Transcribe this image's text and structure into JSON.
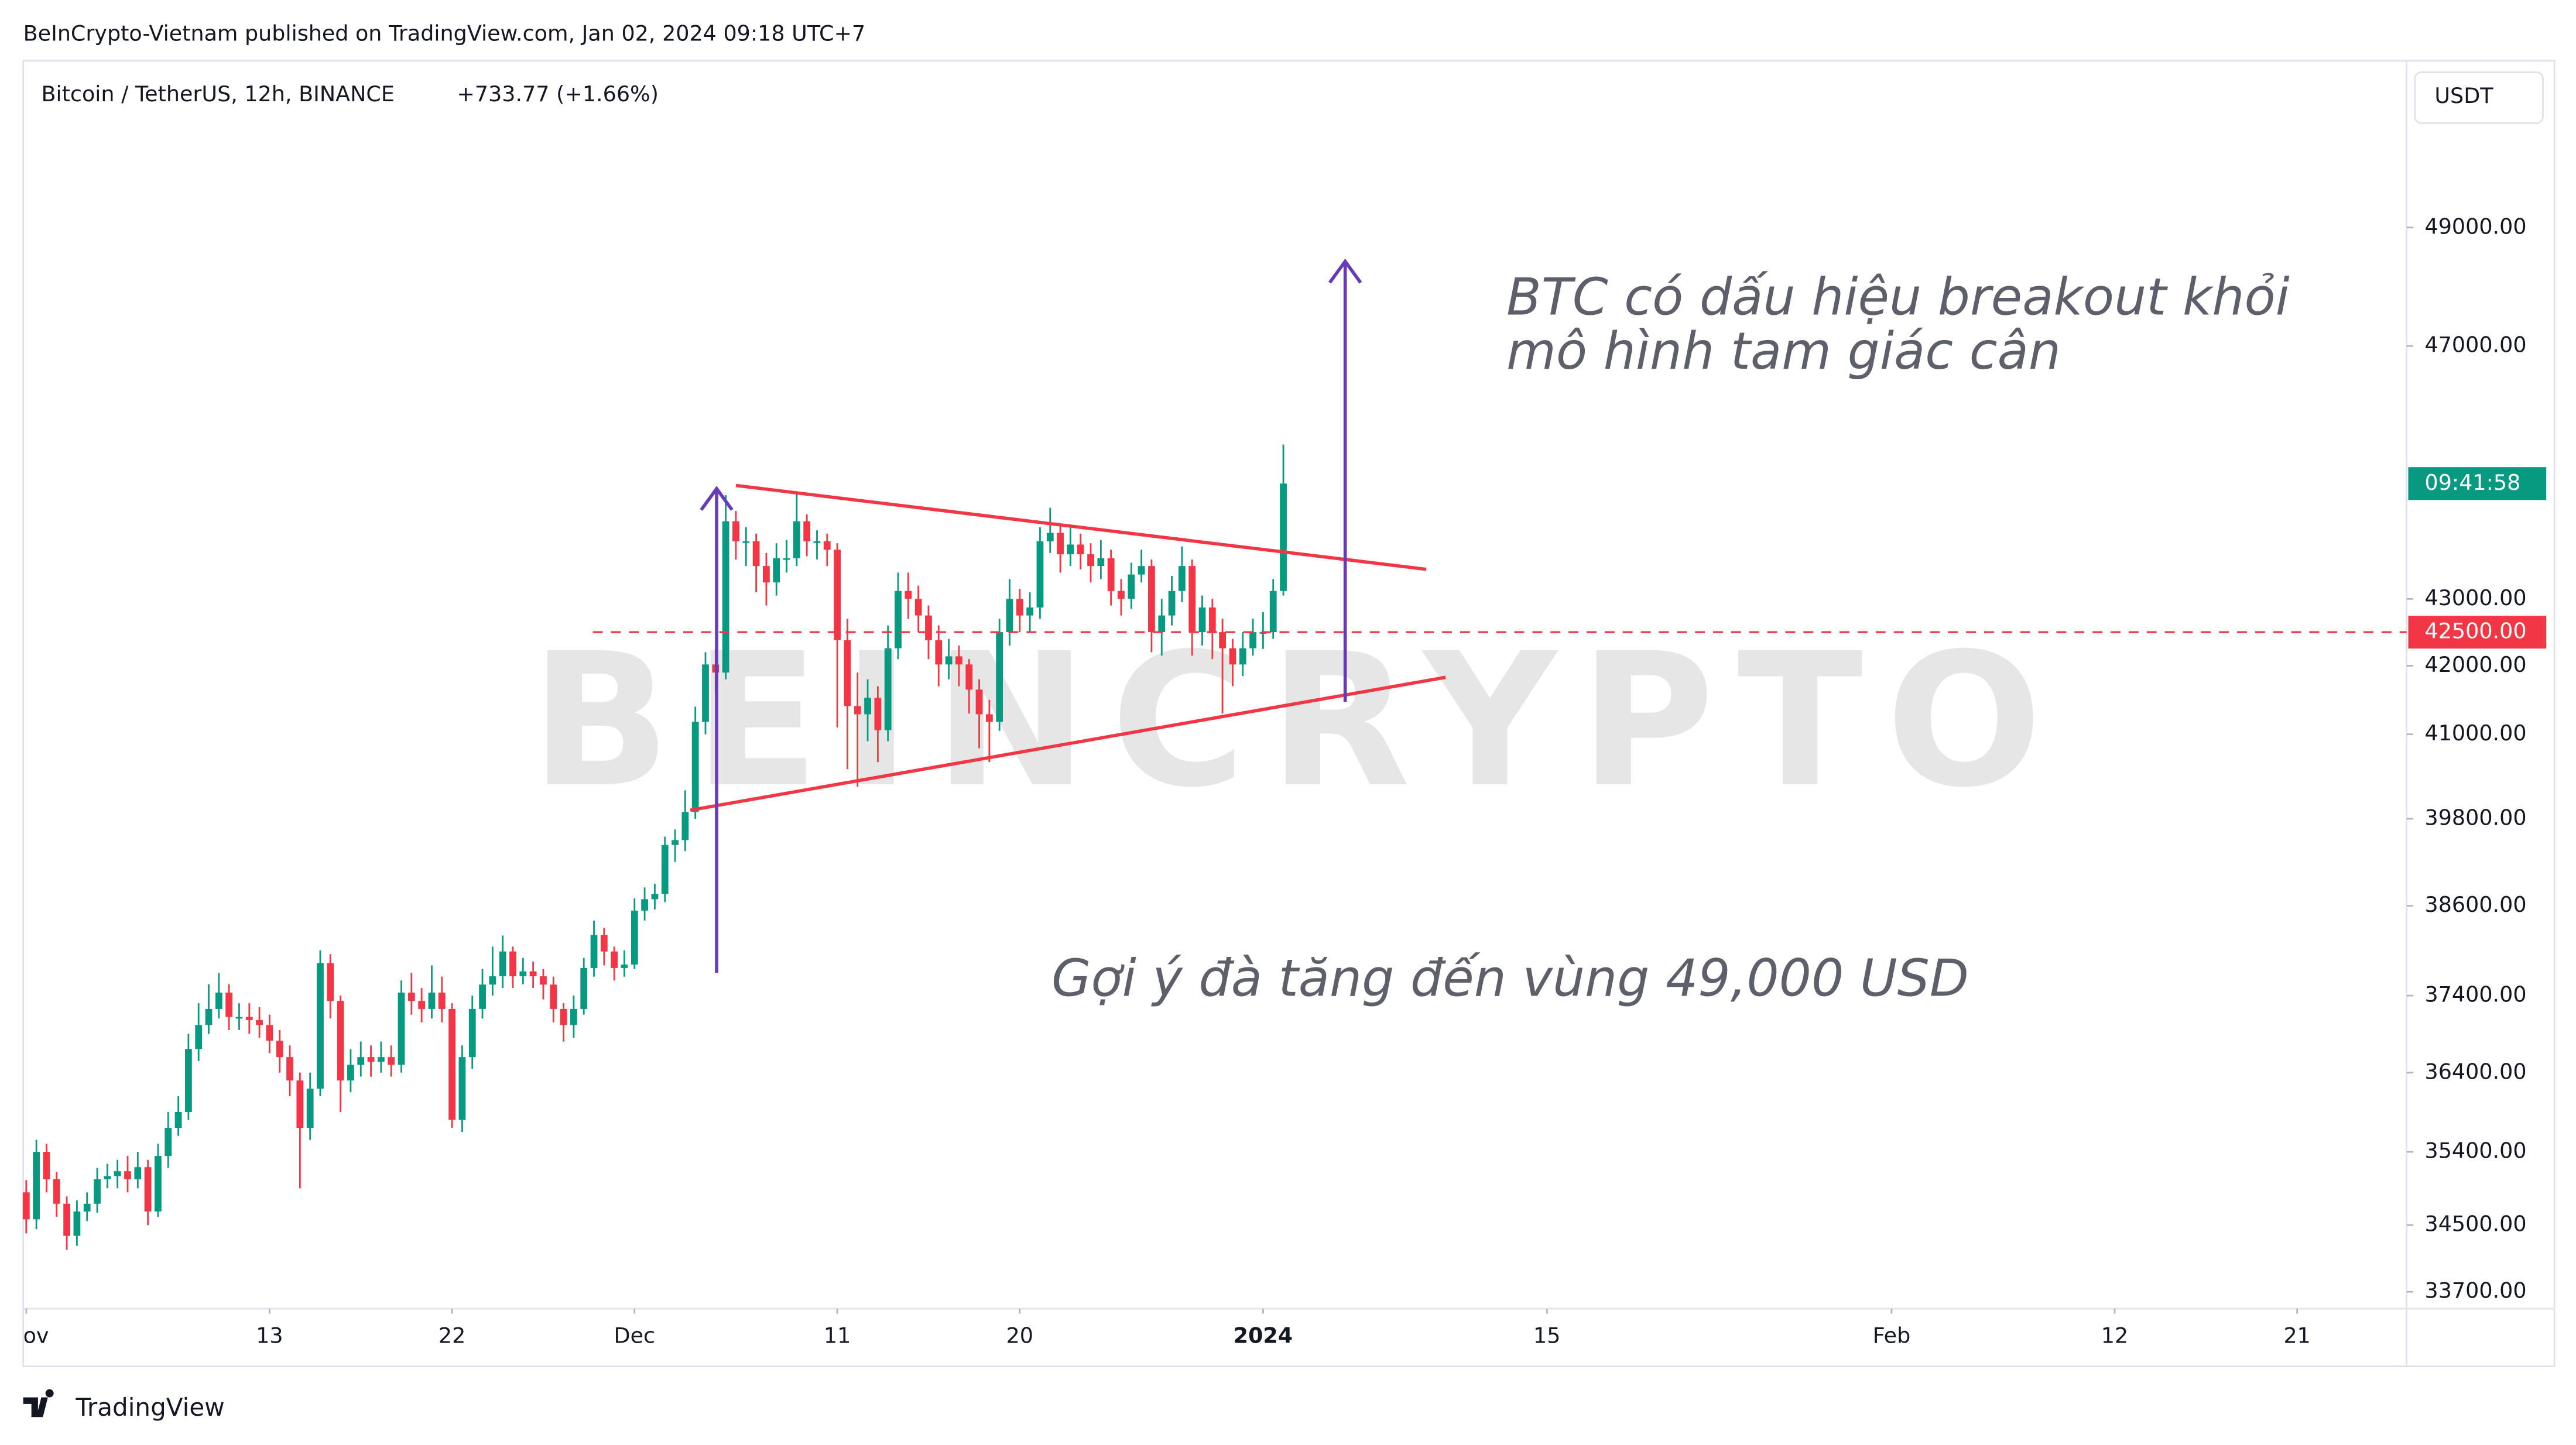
{
  "chart_data": {
    "type": "candlestick",
    "publisher_line": "BeInCrypto-Vietnam published on TradingView.com, Jan 02, 2024 09:18 UTC+7",
    "title": "Bitcoin / TetherUS, 12h, BINANCE",
    "change": "+733.77 (+1.66%)",
    "currency": "USDT",
    "countdown": "09:41:58",
    "brand": "TradingView",
    "watermark": "BEINCRYPTO",
    "annotations": [
      "BTC có dấu hiệu breakout khỏi",
      "mô hình tam giác cân",
      "Gợi ý đà tăng đến vùng 49,000 USD"
    ],
    "up_color": "#089981",
    "down_color": "#f23645",
    "log_scale": true,
    "grid": false,
    "ylim": [
      33500,
      51930
    ],
    "yticks": [
      {
        "value": 49000,
        "label": "49000.00"
      },
      {
        "value": 47000,
        "label": "47000.00"
      },
      {
        "value": 43000,
        "label": "43000.00"
      },
      {
        "value": 42000,
        "label": "42000.00"
      },
      {
        "value": 41000,
        "label": "41000.00"
      },
      {
        "value": 39800,
        "label": "39800.00"
      },
      {
        "value": 38600,
        "label": "38600.00"
      },
      {
        "value": 37400,
        "label": "37400.00"
      },
      {
        "value": 36400,
        "label": "36400.00"
      },
      {
        "value": 35400,
        "label": "35400.00"
      },
      {
        "value": 34500,
        "label": "34500.00"
      },
      {
        "value": 33700,
        "label": "33700.00"
      }
    ],
    "xlim": [
      -0.3,
      234.8
    ],
    "xticks": [
      {
        "value": 0,
        "label": "ov"
      },
      {
        "value": 24,
        "label": "13"
      },
      {
        "value": 42,
        "label": "22"
      },
      {
        "value": 60,
        "label": "Dec"
      },
      {
        "value": 80,
        "label": "11"
      },
      {
        "value": 98,
        "label": "20"
      },
      {
        "value": 122,
        "label": "2024",
        "bold": true
      },
      {
        "value": 150,
        "label": "15"
      },
      {
        "value": 184,
        "label": "Feb"
      },
      {
        "value": 206,
        "label": "12"
      },
      {
        "value": 224,
        "label": "21"
      }
    ],
    "hline": {
      "value": 42500,
      "label": "42500.00",
      "color": "#f23645"
    },
    "drawings": [
      {
        "kind": "trendline",
        "color": "#f23645",
        "x": [
          70.0,
          138.1
        ],
        "y": [
          44750,
          43450
        ]
      },
      {
        "kind": "trendline",
        "color": "#f23645",
        "x": [
          65.5,
          140.0
        ],
        "y": [
          39920,
          41830
        ]
      },
      {
        "kind": "arrow",
        "color": "#673ab7",
        "x": [
          68.1,
          68.1
        ],
        "y": [
          37700,
          44700
        ]
      },
      {
        "kind": "arrow",
        "color": "#673ab7",
        "x": [
          130.1,
          130.1
        ],
        "y": [
          41470,
          48420
        ]
      }
    ],
    "open": [
      34900,
      34570,
      35400,
      35060,
      34760,
      34370,
      34665,
      34760,
      35060,
      35100,
      35160,
      35060,
      35210,
      34665,
      35350,
      35700,
      35900,
      36705,
      37015,
      37225,
      37440,
      37120,
      37120,
      37080,
      37015,
      36810,
      36600,
      36300,
      35700,
      36195,
      37830,
      37330,
      36300,
      36500,
      36600,
      36540,
      36600,
      36500,
      37440,
      37330,
      37225,
      37440,
      37225,
      35800,
      36600,
      37225,
      37545,
      37655,
      37985,
      37655,
      37720,
      37655,
      37545,
      37225,
      37015,
      37225,
      37765,
      38205,
      37985,
      37765,
      37810,
      38535,
      38690,
      38760,
      39435,
      39503,
      39895,
      41180,
      42020,
      41900,
      44190,
      43880,
      43880,
      43500,
      43250,
      43620,
      43620,
      44190,
      43880,
      43880,
      43750,
      42380,
      41410,
      41290,
      41530,
      41060,
      42260,
      43120,
      43000,
      42750,
      42380,
      42020,
      42140,
      42020,
      41650,
      41290,
      41180,
      42500,
      43000,
      42750,
      42870,
      43880,
      44010,
      43680,
      43830,
      43680,
      43500,
      43620,
      43120,
      43000,
      43370,
      43500,
      42500,
      42750,
      43120,
      43500,
      42500,
      42870,
      42500,
      42260,
      42020,
      42260,
      42500,
      42500,
      43120
    ],
    "high": [
      35050,
      35550,
      35500,
      35150,
      34850,
      34800,
      34900,
      35200,
      35250,
      35300,
      35350,
      35400,
      35300,
      35500,
      35900,
      36100,
      36900,
      37300,
      37550,
      37700,
      37550,
      37300,
      37300,
      37250,
      37150,
      36950,
      36750,
      36400,
      36400,
      38000,
      37950,
      37400,
      36700,
      36800,
      36750,
      36800,
      36750,
      37600,
      37700,
      37500,
      37800,
      37650,
      37300,
      36750,
      37400,
      37750,
      38050,
      38200,
      38050,
      37900,
      37850,
      37750,
      37650,
      37300,
      37400,
      37900,
      38400,
      38300,
      38050,
      38000,
      38700,
      38850,
      38900,
      39550,
      39650,
      40200,
      41400,
      42200,
      42250,
      44600,
      44350,
      44100,
      44000,
      43700,
      43850,
      43900,
      44650,
      44300,
      44050,
      44000,
      43850,
      42700,
      41900,
      41800,
      41700,
      42600,
      43400,
      43400,
      43200,
      42900,
      42600,
      42400,
      42300,
      42100,
      41800,
      41500,
      42700,
      43300,
      43150,
      43100,
      44100,
      44400,
      44150,
      44100,
      44000,
      43850,
      43900,
      43750,
      43300,
      43550,
      43750,
      43600,
      43000,
      43350,
      43800,
      43600,
      43050,
      43000,
      42700,
      42400,
      42500,
      42700,
      42800,
      43300,
      45400
    ],
    "low": [
      34400,
      34450,
      34900,
      34600,
      34200,
      34250,
      34550,
      34650,
      34950,
      34950,
      34900,
      34950,
      34500,
      34600,
      35200,
      35600,
      35800,
      36550,
      36900,
      37100,
      36950,
      36950,
      36900,
      36850,
      36650,
      36400,
      36100,
      34950,
      35550,
      36100,
      37100,
      35900,
      36150,
      36350,
      36350,
      36400,
      36350,
      36400,
      37150,
      37050,
      37100,
      37050,
      35700,
      35650,
      36450,
      37100,
      37400,
      37500,
      37500,
      37550,
      37500,
      37350,
      37050,
      36800,
      36850,
      37150,
      37650,
      37800,
      37600,
      37650,
      37750,
      38400,
      38550,
      38650,
      39200,
      39350,
      39800,
      41000,
      41600,
      41800,
      43600,
      43500,
      43100,
      42900,
      43050,
      43400,
      43500,
      43650,
      43600,
      43500,
      41100,
      40500,
      40250,
      40900,
      40600,
      40900,
      42100,
      42700,
      42500,
      42100,
      41700,
      41800,
      41700,
      41300,
      40800,
      40600,
      41050,
      42300,
      42500,
      42500,
      42700,
      43700,
      43400,
      43500,
      43450,
      43250,
      43300,
      42900,
      42750,
      42850,
      43250,
      42200,
      42150,
      42600,
      42950,
      42150,
      42300,
      42100,
      41300,
      41700,
      41850,
      42150,
      42250,
      42400,
      43050
    ],
    "close": [
      34570,
      35400,
      35060,
      34760,
      34370,
      34665,
      34760,
      35060,
      35100,
      35160,
      35060,
      35210,
      34665,
      35350,
      35700,
      35900,
      36705,
      37015,
      37225,
      37440,
      37120,
      37120,
      37080,
      37015,
      36810,
      36600,
      36300,
      35700,
      36195,
      37830,
      37330,
      36300,
      36500,
      36600,
      36540,
      36600,
      36500,
      37440,
      37330,
      37225,
      37440,
      37225,
      35800,
      36600,
      37225,
      37545,
      37655,
      37985,
      37655,
      37720,
      37655,
      37545,
      37225,
      37015,
      37225,
      37765,
      38205,
      37985,
      37765,
      37810,
      38535,
      38690,
      38760,
      39435,
      39503,
      39895,
      41180,
      42020,
      41900,
      44190,
      43880,
      43880,
      43500,
      43250,
      43620,
      43620,
      44190,
      43880,
      43880,
      43750,
      42380,
      41410,
      41290,
      41530,
      41060,
      42260,
      43120,
      43000,
      42750,
      42380,
      42020,
      42140,
      42020,
      41650,
      41290,
      41180,
      42500,
      43000,
      42750,
      42870,
      43880,
      44010,
      43680,
      43830,
      43680,
      43500,
      43620,
      43120,
      43000,
      43370,
      43500,
      42500,
      42750,
      43120,
      43500,
      42500,
      42870,
      42500,
      42260,
      42020,
      42260,
      42500,
      42500,
      43120,
      44780
    ]
  }
}
